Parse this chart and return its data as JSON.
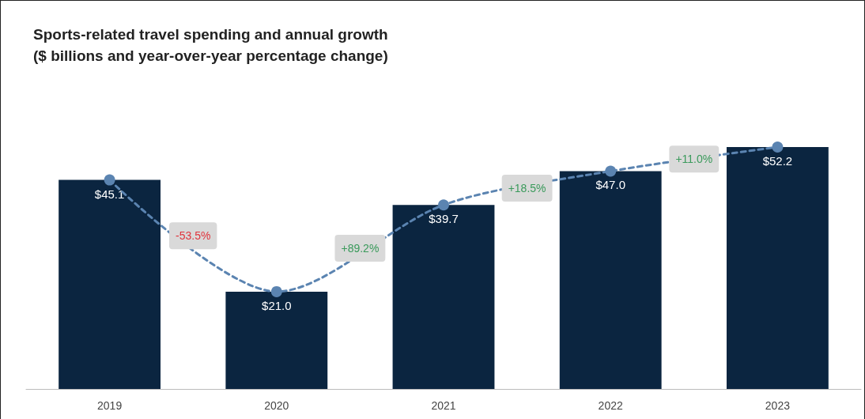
{
  "chart_data": {
    "type": "bar",
    "title": "Sports-related travel spending and annual growth",
    "subtitle": "($ billions and year-over-year percentage change)",
    "categories": [
      "2019",
      "2020",
      "2021",
      "2022",
      "2023"
    ],
    "series": [
      {
        "color": "#0b2540",
        "values": [
          45.1,
          21.0,
          39.7,
          47.0,
          52.2
        ],
        "value_labels": [
          "$45.1",
          "$21.0",
          "$39.7",
          "$47.0",
          "$52.2"
        ]
      },
      {
        "type": "line",
        "color": "#5b84b1",
        "values": [
          45.1,
          21.0,
          39.7,
          47.0,
          52.2
        ],
        "marker": "circle",
        "line_style": "dashed"
      }
    ],
    "annotations": [
      "-53.5%",
      "+89.2%",
      "+18.5%",
      "+11.0%"
    ]
  }
}
